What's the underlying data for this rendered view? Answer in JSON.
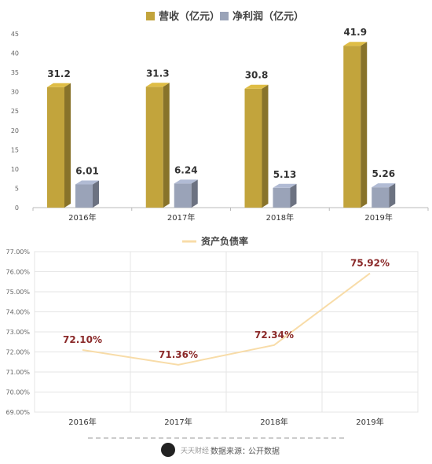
{
  "chart_data": [
    {
      "type": "bar",
      "categories": [
        "2016年",
        "2017年",
        "2018年",
        "2019年"
      ],
      "series": [
        {
          "name": "营收（亿元）",
          "values": [
            31.2,
            31.3,
            30.8,
            41.9
          ],
          "labels": [
            "31.2",
            "31.3",
            "30.8",
            "41.9"
          ],
          "color": "#c2a43c"
        },
        {
          "name": "净利润（亿元）",
          "values": [
            6.01,
            6.24,
            5.13,
            5.26
          ],
          "labels": [
            "6.01",
            "6.24",
            "5.13",
            "5.26"
          ],
          "color": "#9aa3b8"
        }
      ],
      "ylim": [
        0,
        45
      ],
      "yticks": [
        "0",
        "5",
        "10",
        "15",
        "20",
        "25",
        "30",
        "35",
        "40",
        "45"
      ],
      "legend": "top-center",
      "grid": false
    },
    {
      "type": "line",
      "categories": [
        "2016年",
        "2017年",
        "2018年",
        "2019年"
      ],
      "series": [
        {
          "name": "资产负债率",
          "values": [
            72.1,
            71.36,
            72.34,
            75.92
          ],
          "labels": [
            "72.10%",
            "71.36%",
            "72.34%",
            "75.92%"
          ],
          "color": "#f8dca8"
        }
      ],
      "ylim": [
        69,
        77
      ],
      "yticks": [
        "69.00%",
        "70.00%",
        "71.00%",
        "72.00%",
        "73.00%",
        "74.00%",
        "75.00%",
        "76.00%",
        "77.00%"
      ],
      "legend": "top-center",
      "grid": true,
      "label_color": "#8b2a2a"
    }
  ],
  "footer": {
    "brand": "天天财经",
    "source_label": "数据来源：",
    "source_value": "公开数据"
  }
}
